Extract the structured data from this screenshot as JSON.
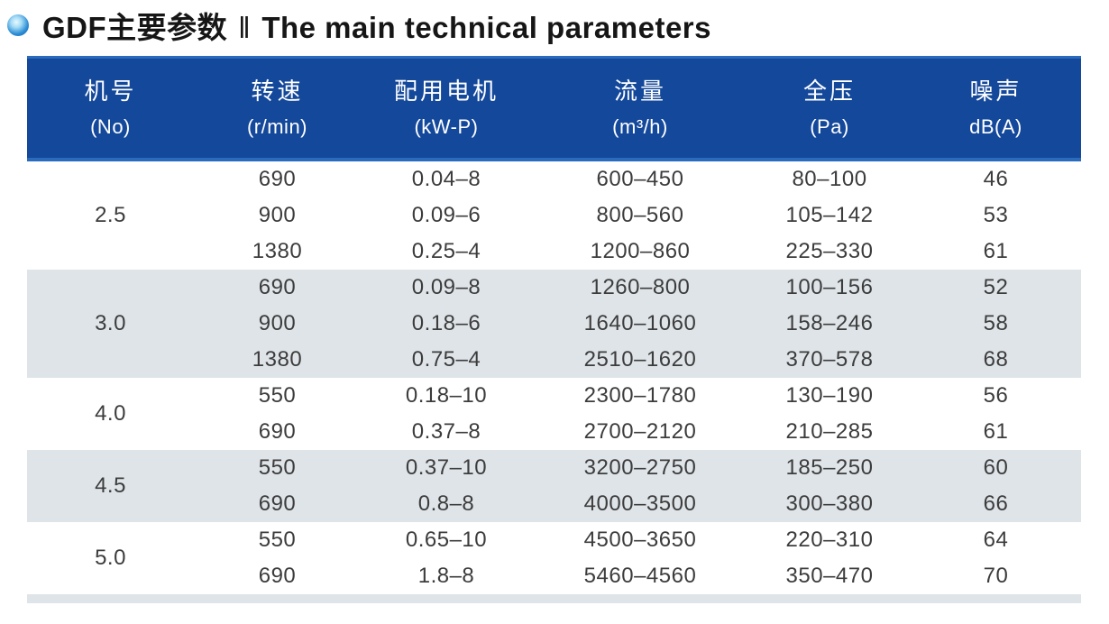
{
  "page_title": {
    "zh": "GDF主要参数",
    "separator": "‖",
    "en": "The main technical parameters"
  },
  "colors": {
    "header_bg": "#14489b",
    "header_accent_line": "#2b6bbd",
    "alt_row_bg": "#dfe4e8",
    "body_text": "#3c3c3c",
    "bullet_blue": "#0b5fa8"
  },
  "table": {
    "columns": [
      {
        "title": "机号",
        "unit": "(No)"
      },
      {
        "title": "转速",
        "unit": "(r/min)"
      },
      {
        "title": "配用电机",
        "unit": "(kW-P)"
      },
      {
        "title": "流量",
        "unit": "(m³/h)"
      },
      {
        "title": "全压",
        "unit": "(Pa)"
      },
      {
        "title": "噪声",
        "unit": "dB(A)"
      }
    ],
    "groups": [
      {
        "no": "2.5",
        "rows": [
          [
            "690",
            "0.04–8",
            "600–450",
            "80–100",
            "46"
          ],
          [
            "900",
            "0.09–6",
            "800–560",
            "105–142",
            "53"
          ],
          [
            "1380",
            "0.25–4",
            "1200–860",
            "225–330",
            "61"
          ]
        ]
      },
      {
        "no": "3.0",
        "rows": [
          [
            "690",
            "0.09–8",
            "1260–800",
            "100–156",
            "52"
          ],
          [
            "900",
            "0.18–6",
            "1640–1060",
            "158–246",
            "58"
          ],
          [
            "1380",
            "0.75–4",
            "2510–1620",
            "370–578",
            "68"
          ]
        ]
      },
      {
        "no": "4.0",
        "rows": [
          [
            "550",
            "0.18–10",
            "2300–1780",
            "130–190",
            "56"
          ],
          [
            "690",
            "0.37–8",
            "2700–2120",
            "210–285",
            "61"
          ]
        ]
      },
      {
        "no": "4.5",
        "rows": [
          [
            "550",
            "0.37–10",
            "3200–2750",
            "185–250",
            "60"
          ],
          [
            "690",
            "0.8–8",
            "4000–3500",
            "300–380",
            "66"
          ]
        ]
      },
      {
        "no": "5.0",
        "rows": [
          [
            "550",
            "0.65–10",
            "4500–3650",
            "220–310",
            "64"
          ],
          [
            "690",
            "1.8–8",
            "5460–4560",
            "350–470",
            "70"
          ]
        ]
      }
    ]
  }
}
